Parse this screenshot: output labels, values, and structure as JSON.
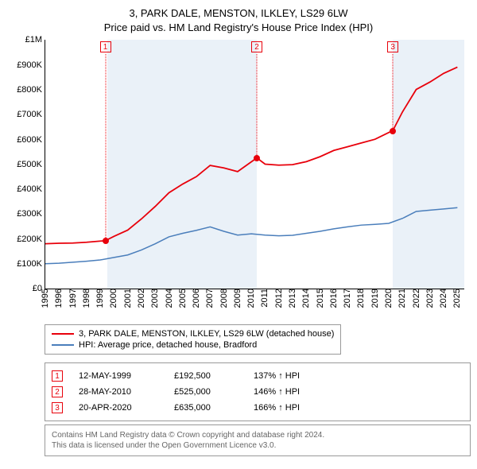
{
  "title": {
    "line1": "3, PARK DALE, MENSTON, ILKLEY, LS29 6LW",
    "line2": "Price paid vs. HM Land Registry's House Price Index (HPI)"
  },
  "chart": {
    "type": "line",
    "x_min": 1995,
    "x_max": 2025.5,
    "y_min": 0,
    "y_max": 1000000,
    "y_ticks": [
      0,
      100000,
      200000,
      300000,
      400000,
      500000,
      600000,
      700000,
      800000,
      900000,
      1000000
    ],
    "y_tick_labels": [
      "£0",
      "£100K",
      "£200K",
      "£300K",
      "£400K",
      "£500K",
      "£600K",
      "£700K",
      "£800K",
      "£900K",
      "£1M"
    ],
    "x_ticks": [
      1995,
      1996,
      1997,
      1998,
      1999,
      2000,
      2001,
      2002,
      2003,
      2004,
      2005,
      2006,
      2007,
      2008,
      2009,
      2010,
      2011,
      2012,
      2013,
      2014,
      2015,
      2016,
      2017,
      2018,
      2019,
      2020,
      2021,
      2022,
      2023,
      2024,
      2025
    ],
    "background_color": "#ffffff",
    "band_color": "#eaf1f8",
    "bands": [
      {
        "start": 1999.5,
        "end": 2010.4
      },
      {
        "start": 2020.3,
        "end": 2025.5
      }
    ],
    "series": [
      {
        "name": "price_paid",
        "color": "#e8000b",
        "width": 1.8,
        "points": [
          [
            1995,
            180000
          ],
          [
            1996,
            182000
          ],
          [
            1997,
            183000
          ],
          [
            1998,
            186000
          ],
          [
            1999.37,
            192500
          ],
          [
            2000,
            210000
          ],
          [
            2001,
            235000
          ],
          [
            2002,
            280000
          ],
          [
            2003,
            330000
          ],
          [
            2004,
            385000
          ],
          [
            2005,
            420000
          ],
          [
            2006,
            450000
          ],
          [
            2007,
            495000
          ],
          [
            2008,
            485000
          ],
          [
            2009,
            470000
          ],
          [
            2010.4,
            525000
          ],
          [
            2011,
            500000
          ],
          [
            2012,
            496000
          ],
          [
            2013,
            498000
          ],
          [
            2014,
            510000
          ],
          [
            2015,
            530000
          ],
          [
            2016,
            555000
          ],
          [
            2017,
            570000
          ],
          [
            2018,
            585000
          ],
          [
            2019,
            600000
          ],
          [
            2020.3,
            635000
          ],
          [
            2021,
            710000
          ],
          [
            2022,
            800000
          ],
          [
            2023,
            830000
          ],
          [
            2024,
            865000
          ],
          [
            2025,
            890000
          ]
        ]
      },
      {
        "name": "hpi",
        "color": "#4a7ebb",
        "width": 1.5,
        "points": [
          [
            1995,
            100000
          ],
          [
            1996,
            102000
          ],
          [
            1997,
            106000
          ],
          [
            1998,
            110000
          ],
          [
            1999,
            115000
          ],
          [
            2000,
            125000
          ],
          [
            2001,
            135000
          ],
          [
            2002,
            155000
          ],
          [
            2003,
            180000
          ],
          [
            2004,
            208000
          ],
          [
            2005,
            222000
          ],
          [
            2006,
            234000
          ],
          [
            2007,
            248000
          ],
          [
            2008,
            230000
          ],
          [
            2009,
            215000
          ],
          [
            2010,
            220000
          ],
          [
            2011,
            215000
          ],
          [
            2012,
            212000
          ],
          [
            2013,
            214000
          ],
          [
            2014,
            222000
          ],
          [
            2015,
            230000
          ],
          [
            2016,
            240000
          ],
          [
            2017,
            248000
          ],
          [
            2018,
            255000
          ],
          [
            2019,
            258000
          ],
          [
            2020,
            262000
          ],
          [
            2021,
            282000
          ],
          [
            2022,
            310000
          ],
          [
            2023,
            315000
          ],
          [
            2024,
            320000
          ],
          [
            2025,
            325000
          ]
        ]
      }
    ],
    "markers": [
      {
        "n": "1",
        "x": 1999.37,
        "y": 192500,
        "color": "#e8000b"
      },
      {
        "n": "2",
        "x": 2010.4,
        "y": 525000,
        "color": "#e8000b"
      },
      {
        "n": "3",
        "x": 2020.3,
        "y": 635000,
        "color": "#e8000b"
      }
    ]
  },
  "legend": {
    "items": [
      {
        "color": "#e8000b",
        "label": "3, PARK DALE, MENSTON, ILKLEY, LS29 6LW (detached house)"
      },
      {
        "color": "#4a7ebb",
        "label": "HPI: Average price, detached house, Bradford"
      }
    ]
  },
  "transactions": [
    {
      "n": "1",
      "color": "#e8000b",
      "date": "12-MAY-1999",
      "price": "£192,500",
      "delta": "137% ↑ HPI"
    },
    {
      "n": "2",
      "color": "#e8000b",
      "date": "28-MAY-2010",
      "price": "£525,000",
      "delta": "146% ↑ HPI"
    },
    {
      "n": "3",
      "color": "#e8000b",
      "date": "20-APR-2020",
      "price": "£635,000",
      "delta": "166% ↑ HPI"
    }
  ],
  "footer": {
    "line1": "Contains HM Land Registry data © Crown copyright and database right 2024.",
    "line2": "This data is licensed under the Open Government Licence v3.0."
  }
}
